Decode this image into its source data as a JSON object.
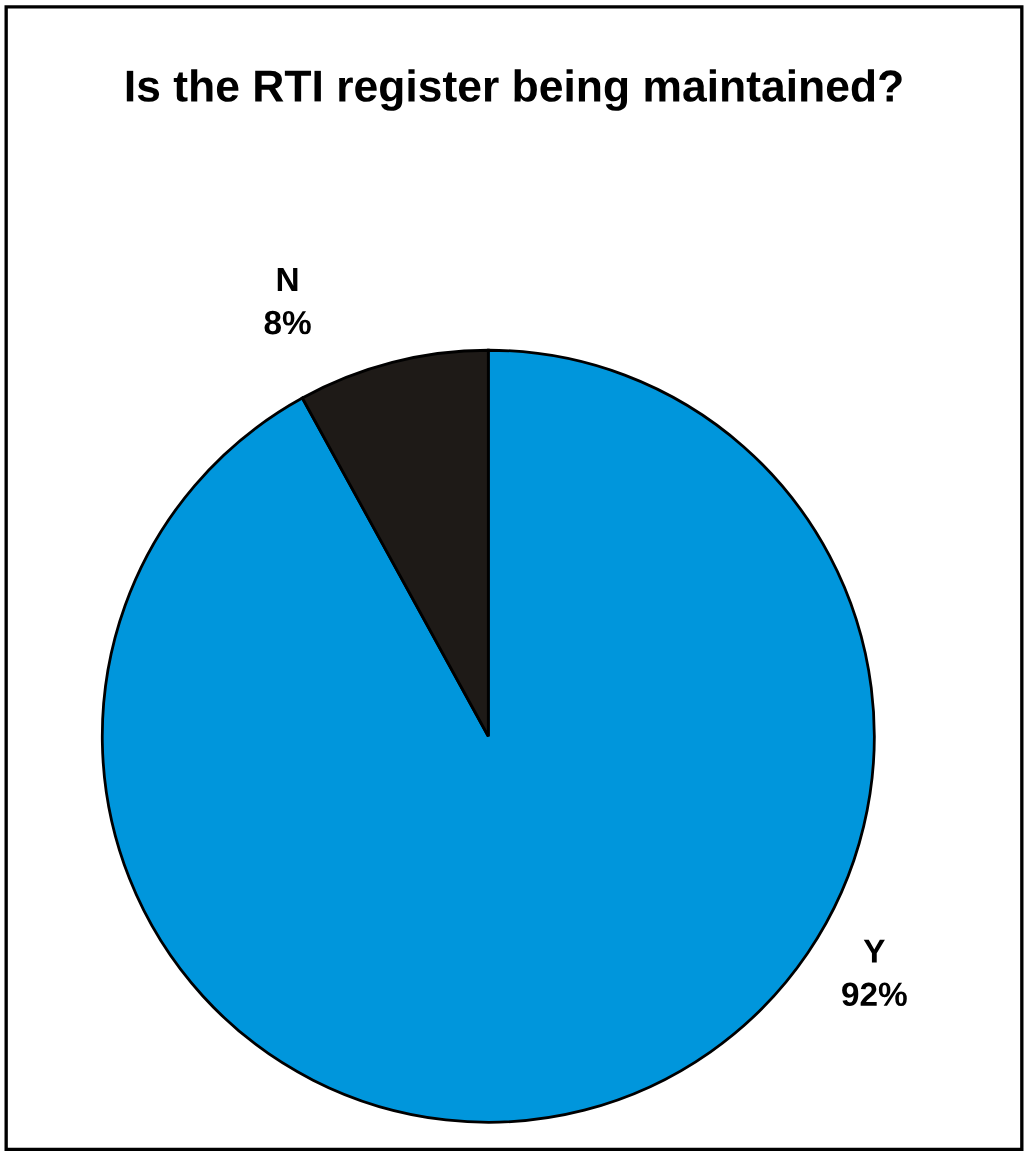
{
  "chart_data": {
    "type": "pie",
    "title": "Is the RTI register being maintained?",
    "categories": [
      "Y",
      "N"
    ],
    "values": [
      92,
      8
    ],
    "colors": [
      "#0096dc",
      "#1e1a17"
    ],
    "value_labels": [
      "92%",
      "8%"
    ]
  }
}
